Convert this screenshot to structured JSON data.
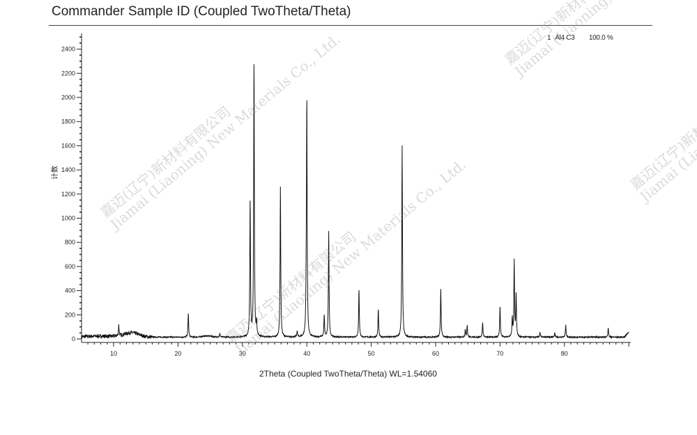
{
  "chart_data": {
    "type": "line",
    "title": "Commander Sample ID (Coupled TwoTheta/Theta)",
    "xlabel": "2Theta (Coupled TwoTheta/Theta) WL=1.54060",
    "ylabel": "计数",
    "xlim": [
      5,
      90
    ],
    "ylim": [
      0,
      2530
    ],
    "x_ticks": [
      10,
      20,
      30,
      40,
      50,
      60,
      70,
      80
    ],
    "y_ticks": [
      0,
      200,
      400,
      600,
      800,
      1000,
      1200,
      1400,
      1600,
      1800,
      2000,
      2200,
      2400
    ],
    "grid": false,
    "legend": {
      "position": "top-right",
      "entries": [
        {
          "index": "1",
          "name": "Al4 C3",
          "percent": "100.0 %"
        }
      ]
    },
    "series": [
      {
        "peaks": [
          {
            "x": 10.8,
            "y": 90
          },
          {
            "x": 21.6,
            "y": 200
          },
          {
            "x": 26.5,
            "y": 30
          },
          {
            "x": 31.2,
            "y": 1140
          },
          {
            "x": 31.8,
            "y": 2310
          },
          {
            "x": 32.2,
            "y": 110
          },
          {
            "x": 35.9,
            "y": 1250
          },
          {
            "x": 38.5,
            "y": 50
          },
          {
            "x": 39.9,
            "y": 280
          },
          {
            "x": 40.0,
            "y": 1950
          },
          {
            "x": 42.7,
            "y": 180
          },
          {
            "x": 43.4,
            "y": 880
          },
          {
            "x": 48.1,
            "y": 400
          },
          {
            "x": 51.1,
            "y": 230
          },
          {
            "x": 54.8,
            "y": 1590
          },
          {
            "x": 60.8,
            "y": 400
          },
          {
            "x": 64.6,
            "y": 60
          },
          {
            "x": 64.9,
            "y": 100
          },
          {
            "x": 67.3,
            "y": 120
          },
          {
            "x": 70.0,
            "y": 260
          },
          {
            "x": 71.9,
            "y": 150
          },
          {
            "x": 72.2,
            "y": 630
          },
          {
            "x": 72.5,
            "y": 350
          },
          {
            "x": 76.2,
            "y": 40
          },
          {
            "x": 78.5,
            "y": 40
          },
          {
            "x": 80.2,
            "y": 100
          },
          {
            "x": 86.8,
            "y": 80
          }
        ]
      }
    ]
  },
  "watermark": {
    "line1": "嘉迈(辽宁)新材料有限公司",
    "line2": "Jiamai (Liaoning) New Materials Co., Ltd."
  }
}
